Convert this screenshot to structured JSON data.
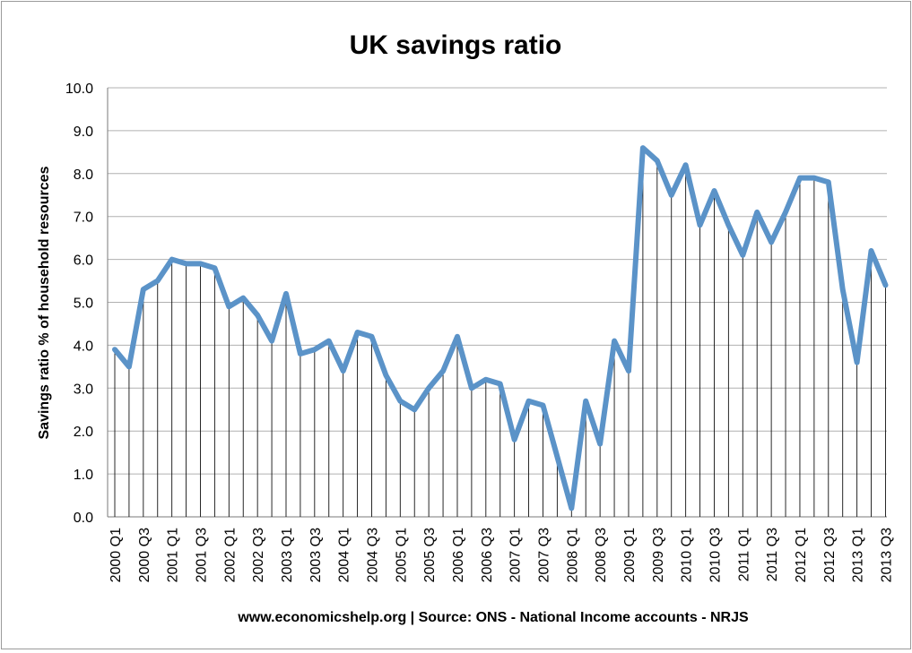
{
  "chart_data": {
    "type": "line",
    "title": "UK savings ratio",
    "ylabel": "Savings ratio % of household resources",
    "source_note": "www.economicshelp.org | Source: ONS - National Income accounts - NRJS",
    "ylim": [
      0,
      10
    ],
    "ytick_step": 1,
    "ytick_labels": [
      "0.0",
      "1.0",
      "2.0",
      "3.0",
      "4.0",
      "5.0",
      "6.0",
      "7.0",
      "8.0",
      "9.0",
      "10.0"
    ],
    "grid": true,
    "drop_lines": true,
    "line_color": "#5b93c8",
    "categories": [
      "2000 Q1",
      "2000 Q2",
      "2000 Q3",
      "2000 Q4",
      "2001 Q1",
      "2001 Q2",
      "2001 Q3",
      "2001 Q4",
      "2002 Q1",
      "2002 Q2",
      "2002 Q3",
      "2002 Q4",
      "2003 Q1",
      "2003 Q2",
      "2003 Q3",
      "2003 Q4",
      "2004 Q1",
      "2004 Q2",
      "2004 Q3",
      "2004 Q4",
      "2005 Q1",
      "2005 Q2",
      "2005 Q3",
      "2005 Q4",
      "2006 Q1",
      "2006 Q2",
      "2006 Q3",
      "2006 Q4",
      "2007 Q1",
      "2007 Q2",
      "2007 Q3",
      "2007 Q4",
      "2008 Q1",
      "2008 Q2",
      "2008 Q3",
      "2008 Q4",
      "2009 Q1",
      "2009 Q2",
      "2009 Q3",
      "2009 Q4",
      "2010 Q1",
      "2010 Q2",
      "2010 Q3",
      "2010 Q4",
      "2011 Q1",
      "2011 Q2",
      "2011 Q3",
      "2011 Q4",
      "2012 Q1",
      "2012 Q2",
      "2012 Q3",
      "2012 Q4",
      "2013 Q1",
      "2013 Q2",
      "2013 Q3"
    ],
    "visible_tick_labels": [
      "2000 Q1",
      "2000 Q3",
      "2001 Q1",
      "2001 Q3",
      "2002 Q1",
      "2002 Q3",
      "2003 Q1",
      "2003 Q3",
      "2004 Q1",
      "2004 Q3",
      "2005 Q1",
      "2005 Q3",
      "2006 Q1",
      "2006 Q3",
      "2007 Q1",
      "2007 Q3",
      "2008 Q1",
      "2008 Q3",
      "2009 Q1",
      "2009 Q3",
      "2010 Q1",
      "2010 Q3",
      "2011 Q1",
      "2011 Q3",
      "2012 Q1",
      "2012 Q3",
      "2013 Q1",
      "2013 Q3"
    ],
    "values": [
      3.9,
      3.5,
      5.3,
      5.5,
      6.0,
      5.9,
      5.9,
      5.8,
      4.9,
      5.1,
      4.7,
      4.1,
      5.2,
      3.8,
      3.9,
      4.1,
      3.4,
      4.3,
      4.2,
      3.3,
      2.7,
      2.5,
      3.0,
      3.4,
      4.2,
      3.0,
      3.2,
      3.1,
      1.8,
      2.7,
      2.6,
      1.4,
      0.2,
      2.7,
      1.7,
      4.1,
      3.4,
      8.6,
      8.3,
      7.5,
      8.2,
      6.8,
      7.6,
      6.8,
      6.1,
      7.1,
      6.4,
      7.1,
      7.9,
      7.9,
      7.8,
      5.3,
      3.6,
      6.2,
      5.4
    ]
  }
}
